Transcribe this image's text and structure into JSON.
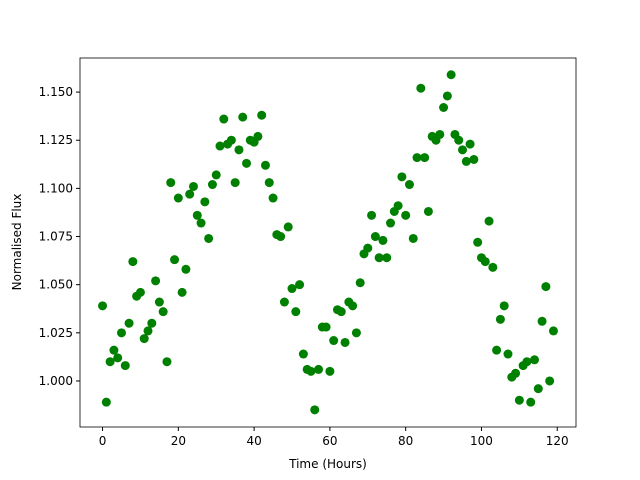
{
  "chart_data": {
    "type": "scatter",
    "xlabel": "Time (Hours)",
    "ylabel": "Normalised Flux",
    "color": "#008000",
    "x": [
      0,
      1,
      2,
      3,
      4,
      5,
      6,
      7,
      8,
      9,
      10,
      11,
      12,
      13,
      14,
      15,
      16,
      17,
      18,
      19,
      20,
      21,
      22,
      23,
      24,
      25,
      26,
      27,
      28,
      29,
      30,
      31,
      32,
      33,
      34,
      35,
      36,
      37,
      38,
      39,
      40,
      41,
      42,
      43,
      44,
      45,
      46,
      47,
      48,
      49,
      50,
      51,
      52,
      53,
      54,
      55,
      56,
      57,
      58,
      59,
      60,
      61,
      62,
      63,
      64,
      65,
      66,
      67,
      68,
      69,
      70,
      71,
      72,
      73,
      74,
      75,
      76,
      77,
      78,
      79,
      80,
      81,
      82,
      83,
      84,
      85,
      86,
      87,
      88,
      89,
      90,
      91,
      92,
      93,
      94,
      95,
      96,
      97,
      98,
      99,
      100,
      101,
      102,
      103,
      104,
      105,
      106,
      107,
      108,
      109,
      110,
      111,
      112,
      113,
      114,
      115,
      116,
      117,
      118,
      119
    ],
    "y": [
      1.039,
      0.989,
      1.01,
      1.016,
      1.012,
      1.025,
      1.008,
      1.03,
      1.062,
      1.044,
      1.046,
      1.022,
      1.026,
      1.03,
      1.052,
      1.041,
      1.036,
      1.01,
      1.103,
      1.063,
      1.095,
      1.046,
      1.058,
      1.097,
      1.101,
      1.086,
      1.082,
      1.093,
      1.074,
      1.102,
      1.107,
      1.122,
      1.136,
      1.123,
      1.125,
      1.103,
      1.12,
      1.137,
      1.113,
      1.125,
      1.124,
      1.127,
      1.138,
      1.112,
      1.103,
      1.095,
      1.076,
      1.075,
      1.041,
      1.08,
      1.048,
      1.036,
      1.05,
      1.014,
      1.006,
      1.005,
      0.985,
      1.006,
      1.028,
      1.028,
      1.005,
      1.021,
      1.037,
      1.036,
      1.02,
      1.041,
      1.039,
      1.025,
      1.051,
      1.066,
      1.069,
      1.086,
      1.075,
      1.064,
      1.073,
      1.064,
      1.082,
      1.088,
      1.091,
      1.106,
      1.086,
      1.102,
      1.074,
      1.116,
      1.152,
      1.116,
      1.088,
      1.127,
      1.125,
      1.128,
      1.142,
      1.148,
      1.159,
      1.128,
      1.125,
      1.12,
      1.114,
      1.123,
      1.115,
      1.072,
      1.064,
      1.062,
      1.083,
      1.059,
      1.016,
      1.032,
      1.039,
      1.014,
      1.002,
      1.004,
      0.99,
      1.008,
      1.01,
      0.989,
      1.011,
      0.996,
      1.031,
      1.049,
      1.0,
      1.026
    ],
    "xlim": [
      -5.95,
      124.95
    ],
    "xticks": [
      0,
      20,
      40,
      60,
      80,
      100,
      120
    ],
    "ylim": [
      0.9761,
      1.1677
    ],
    "yticks": [
      {
        "value": 1.0,
        "label": "1.000"
      },
      {
        "value": 1.025,
        "label": "1.025"
      },
      {
        "value": 1.05,
        "label": "1.050"
      },
      {
        "value": 1.075,
        "label": "1.075"
      },
      {
        "value": 1.1,
        "label": "1.100"
      },
      {
        "value": 1.125,
        "label": "1.125"
      },
      {
        "value": 1.15,
        "label": "1.150"
      }
    ]
  }
}
